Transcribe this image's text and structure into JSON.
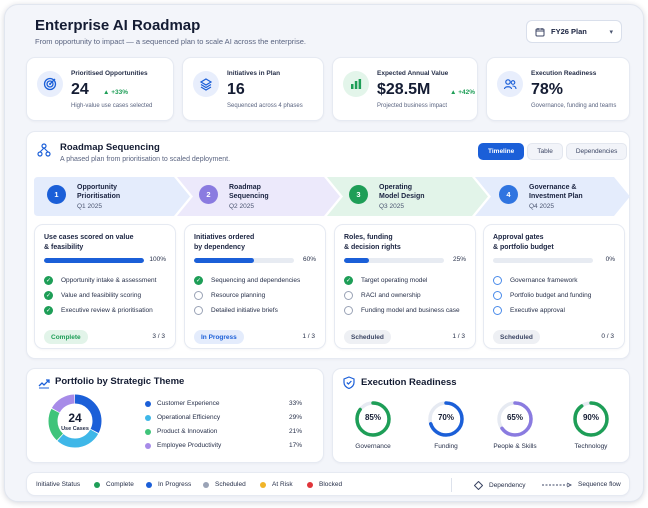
{
  "header": {
    "title": "Enterprise AI Roadmap",
    "subtitle": "From opportunity to impact — a sequenced plan to scale AI across the enterprise.",
    "plan_selector": "FY26 Plan"
  },
  "kpis": [
    {
      "label": "Prioritised Opportunities",
      "value": "24",
      "delta": "▲ +33%",
      "sub": "High-value use cases selected",
      "icon": "target-icon"
    },
    {
      "label": "Initiatives in Plan",
      "value": "16",
      "delta": "",
      "sub": "Sequenced across 4 phases",
      "icon": "layers-icon"
    },
    {
      "label": "Expected Annual Value",
      "value": "$28.5M",
      "delta": "▲ +42%",
      "sub": "Projected business impact",
      "icon": "bar-chart-icon"
    },
    {
      "label": "Execution Readiness",
      "value": "78%",
      "delta": "",
      "sub": "Governance, funding and teams",
      "icon": "team-icon"
    }
  ],
  "roadmap": {
    "title": "Roadmap Sequencing",
    "subtitle": "A phased plan from prioritisation to scaled deployment.",
    "tabs": [
      "Timeline",
      "Table",
      "Dependencies"
    ],
    "active_tab": "Timeline",
    "phases": [
      {
        "num": "1",
        "name": "Opportunity\nPrioritisation",
        "quarter": "Q1 2025",
        "color": "#1b5fd8"
      },
      {
        "num": "2",
        "name": "Roadmap\nSequencing",
        "quarter": "Q2 2025",
        "color": "#8a7be0"
      },
      {
        "num": "3",
        "name": "Operating\nModel Design",
        "quarter": "Q3 2025",
        "color": "#1e9e57"
      },
      {
        "num": "4",
        "name": "Governance &\nInvestment Plan",
        "quarter": "Q4 2025",
        "color": "#2f74e0"
      }
    ],
    "cards": [
      {
        "title": "Use cases scored on value\n& feasibility",
        "progress": 100,
        "pct": "100%",
        "tasks": [
          "Opportunity intake & assessment",
          "Value and feasibility scoring",
          "Executive review & prioritisation"
        ],
        "task_state": [
          "done",
          "done",
          "done"
        ],
        "badge": "Complete",
        "count": "3 / 3"
      },
      {
        "title": "Initiatives ordered\nby dependency",
        "progress": 60,
        "pct": "60%",
        "tasks": [
          "Sequencing and dependencies",
          "Resource planning",
          "Detailed initiative briefs"
        ],
        "task_state": [
          "done",
          "open",
          "open"
        ],
        "badge": "In Progress",
        "count": "1 / 3"
      },
      {
        "title": "Roles, funding\n& decision rights",
        "progress": 25,
        "pct": "25%",
        "tasks": [
          "Target operating model",
          "RACI and ownership",
          "Funding model and business case"
        ],
        "task_state": [
          "done",
          "open",
          "open"
        ],
        "badge": "Scheduled",
        "count": "1 / 3"
      },
      {
        "title": "Approval gates\n& portfolio budget",
        "progress": 0,
        "pct": "0%",
        "tasks": [
          "Governance framework",
          "Portfolio budget and funding",
          "Executive approval"
        ],
        "task_state": [
          "sched",
          "sched",
          "sched"
        ],
        "badge": "Scheduled",
        "count": "0 / 3"
      }
    ]
  },
  "portfolio": {
    "title": "Portfolio by Strategic Theme",
    "center_value": "24",
    "center_label": "Use Cases",
    "themes": [
      {
        "name": "Customer Experience",
        "pct": "33%",
        "value": 33,
        "color": "#1b5fd8"
      },
      {
        "name": "Operational Efficiency",
        "pct": "29%",
        "value": 29,
        "color": "#3fb7e8"
      },
      {
        "name": "Product & Innovation",
        "pct": "21%",
        "value": 21,
        "color": "#3fc47a"
      },
      {
        "name": "Employee Productivity",
        "pct": "17%",
        "value": 17,
        "color": "#a78be8"
      }
    ]
  },
  "readiness": {
    "title": "Execution Readiness",
    "items": [
      {
        "name": "Governance",
        "pct": "85%",
        "value": 85,
        "color": "#1e9e57"
      },
      {
        "name": "Funding",
        "pct": "70%",
        "value": 70,
        "color": "#1b5fd8"
      },
      {
        "name": "People & Skills",
        "pct": "65%",
        "value": 65,
        "color": "#8a7be0"
      },
      {
        "name": "Technology",
        "pct": "90%",
        "value": 90,
        "color": "#1e9e57"
      }
    ]
  },
  "status_legend": {
    "label": "Initiative Status",
    "items": [
      {
        "name": "Complete",
        "color": "#1e9e57"
      },
      {
        "name": "In Progress",
        "color": "#1b5fd8"
      },
      {
        "name": "Scheduled",
        "color": "#9aa3b6"
      },
      {
        "name": "At Risk",
        "color": "#f0b429"
      },
      {
        "name": "Blocked",
        "color": "#e0343a"
      }
    ],
    "dependency": "Dependency",
    "sequence": "Sequence flow"
  }
}
